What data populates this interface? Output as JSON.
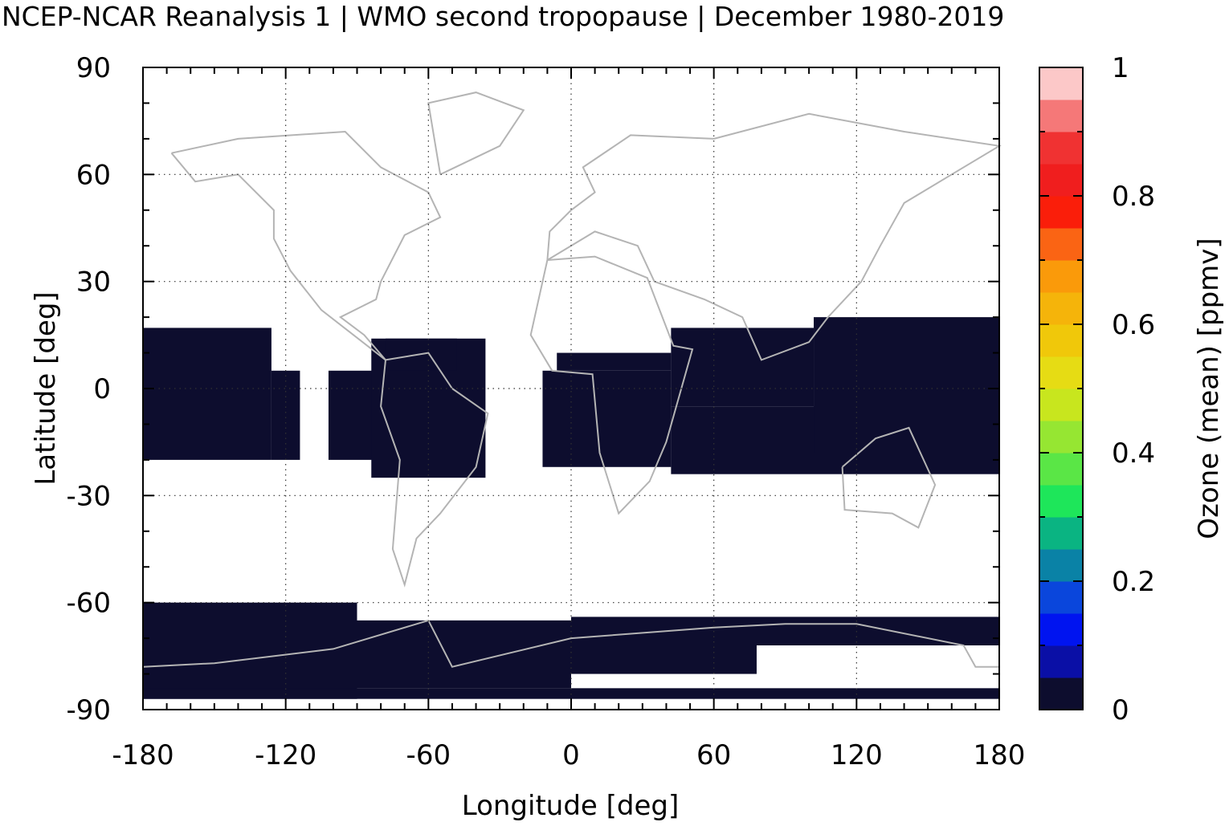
{
  "chart_data": {
    "type": "heatmap",
    "title": "NCEP-NCAR Reanalysis 1 | WMO second tropopause | December 1980-2019",
    "xlabel": "Longitude [deg]",
    "ylabel": "Latitude [deg]",
    "colorbar_label": "Ozone (mean) [ppmv]",
    "xlim": [
      -180,
      180
    ],
    "ylim": [
      -90,
      90
    ],
    "grid": true,
    "x_ticks": [
      -180,
      -120,
      -60,
      0,
      60,
      120,
      180
    ],
    "y_ticks": [
      90,
      60,
      30,
      0,
      -30,
      -60,
      -90
    ],
    "x_tick_labels": [
      "-180",
      "-120",
      "-60",
      "0",
      "60",
      "120",
      "180"
    ],
    "y_tick_labels": [
      "90",
      "60",
      "30",
      "0",
      "-30",
      "-60",
      "-90"
    ],
    "colorbar": {
      "range": [
        0,
        1
      ],
      "tick_values": [
        0,
        0.2,
        0.4,
        0.6,
        0.8,
        1
      ],
      "tick_labels": [
        "0",
        "0.2",
        "0.4",
        "0.6",
        "0.8",
        "1"
      ],
      "colors": [
        "#0d0d2e",
        "#0a0fa6",
        "#0014f0",
        "#0a46dc",
        "#0a82a6",
        "#0ab482",
        "#1ee65a",
        "#5ae646",
        "#96e632",
        "#c8e61e",
        "#e6dc14",
        "#f0c80a",
        "#f5b40a",
        "#fa9a0a",
        "#fa6414",
        "#fa1e0a",
        "#f01e1e",
        "#f03232",
        "#f57878",
        "#fcc8c8"
      ]
    },
    "filled_value_color": "#0d0d2e",
    "filled_regions": [
      {
        "lon": [
          -180,
          -126
        ],
        "lat": [
          -20,
          17
        ]
      },
      {
        "lon": [
          -126,
          -114
        ],
        "lat": [
          -20,
          5
        ]
      },
      {
        "lon": [
          -102,
          -78
        ],
        "lat": [
          -20,
          5
        ]
      },
      {
        "lon": [
          -84,
          -36
        ],
        "lat": [
          -25,
          14
        ]
      },
      {
        "lon": [
          -78,
          -48
        ],
        "lat": [
          5,
          14
        ]
      },
      {
        "lon": [
          -12,
          42
        ],
        "lat": [
          -22,
          5
        ]
      },
      {
        "lon": [
          -6,
          42
        ],
        "lat": [
          5,
          10
        ]
      },
      {
        "lon": [
          42,
          180
        ],
        "lat": [
          -24,
          -5
        ]
      },
      {
        "lon": [
          42,
          102
        ],
        "lat": [
          -5,
          17
        ]
      },
      {
        "lon": [
          102,
          180
        ],
        "lat": [
          -18,
          20
        ]
      },
      {
        "lon": [
          -180,
          -90
        ],
        "lat": [
          -87,
          -60
        ]
      },
      {
        "lon": [
          -90,
          0
        ],
        "lat": [
          -84,
          -65
        ]
      },
      {
        "lon": [
          0,
          180
        ],
        "lat": [
          -72,
          -64
        ]
      },
      {
        "lon": [
          0,
          78
        ],
        "lat": [
          -80,
          -72
        ]
      },
      {
        "lon": [
          -180,
          180
        ],
        "lat": [
          -87,
          -84
        ]
      }
    ],
    "continents_overlay_color": "#b4b4b4"
  }
}
